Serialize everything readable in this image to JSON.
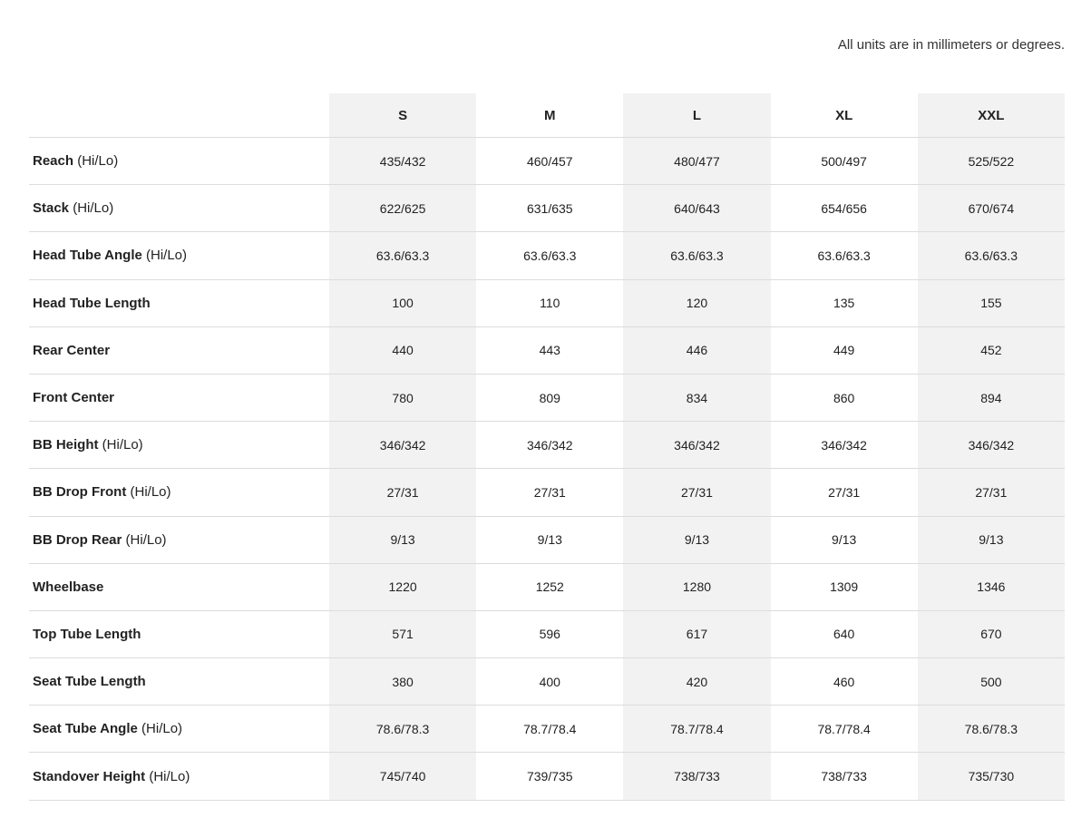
{
  "note": "All units are in millimeters or degrees.",
  "sizes": [
    "S",
    "M",
    "L",
    "XL",
    "XXL"
  ],
  "shaded_column_color": "#f2f2f2",
  "rows": [
    {
      "label": "Reach",
      "qualifier": "(Hi/Lo)",
      "values": [
        "435/432",
        "460/457",
        "480/477",
        "500/497",
        "525/522"
      ]
    },
    {
      "label": "Stack",
      "qualifier": "(Hi/Lo)",
      "values": [
        "622/625",
        "631/635",
        "640/643",
        "654/656",
        "670/674"
      ]
    },
    {
      "label": "Head Tube Angle",
      "qualifier": "(Hi/Lo)",
      "values": [
        "63.6/63.3",
        "63.6/63.3",
        "63.6/63.3",
        "63.6/63.3",
        "63.6/63.3"
      ]
    },
    {
      "label": "Head Tube Length",
      "qualifier": "",
      "values": [
        "100",
        "110",
        "120",
        "135",
        "155"
      ]
    },
    {
      "label": "Rear Center",
      "qualifier": "",
      "values": [
        "440",
        "443",
        "446",
        "449",
        "452"
      ]
    },
    {
      "label": "Front Center",
      "qualifier": "",
      "values": [
        "780",
        "809",
        "834",
        "860",
        "894"
      ]
    },
    {
      "label": "BB Height",
      "qualifier": "(Hi/Lo)",
      "values": [
        "346/342",
        "346/342",
        "346/342",
        "346/342",
        "346/342"
      ]
    },
    {
      "label": "BB Drop Front",
      "qualifier": "(Hi/Lo)",
      "values": [
        "27/31",
        "27/31",
        "27/31",
        "27/31",
        "27/31"
      ]
    },
    {
      "label": "BB Drop Rear",
      "qualifier": "(Hi/Lo)",
      "values": [
        "9/13",
        "9/13",
        "9/13",
        "9/13",
        "9/13"
      ]
    },
    {
      "label": "Wheelbase",
      "qualifier": "",
      "values": [
        "1220",
        "1252",
        "1280",
        "1309",
        "1346"
      ]
    },
    {
      "label": "Top Tube Length",
      "qualifier": "",
      "values": [
        "571",
        "596",
        "617",
        "640",
        "670"
      ]
    },
    {
      "label": "Seat Tube Length",
      "qualifier": "",
      "values": [
        "380",
        "400",
        "420",
        "460",
        "500"
      ]
    },
    {
      "label": "Seat Tube Angle",
      "qualifier": "(Hi/Lo)",
      "values": [
        "78.6/78.3",
        "78.7/78.4",
        "78.7/78.4",
        "78.7/78.4",
        "78.6/78.3"
      ]
    },
    {
      "label": "Standover Height",
      "qualifier": "(Hi/Lo)",
      "values": [
        "745/740",
        "739/735",
        "738/733",
        "738/733",
        "735/730"
      ]
    }
  ]
}
